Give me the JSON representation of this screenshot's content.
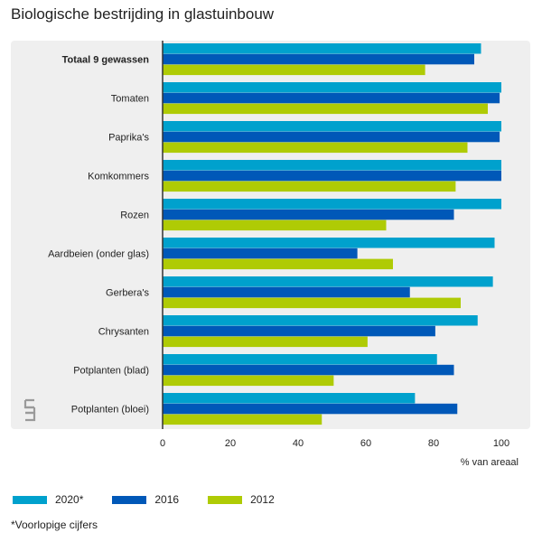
{
  "title": "Biologische bestrijding in glastuinbouw",
  "footnote": "*Voorlopige cijfers",
  "colors": {
    "2020*": "#00a1cd",
    "2016": "#0058b8",
    "2012": "#afcb05",
    "panel": "#efefef",
    "axis": "#333333"
  },
  "chart_data": {
    "type": "bar",
    "orientation": "horizontal",
    "title": "Biologische bestrijding in glastuinbouw",
    "xlabel": "% van areaal",
    "xlim": [
      0,
      100
    ],
    "xticks": [
      0,
      20,
      40,
      60,
      80,
      100
    ],
    "categories": [
      "Totaal 9 gewassen",
      "Tomaten",
      "Paprika's",
      "Komkommers",
      "Rozen",
      "Aardbeien (onder glas)",
      "Gerbera's",
      "Chrysanten",
      "Potplanten (blad)",
      "Potplanten (bloei)"
    ],
    "bold_categories": [
      "Totaal 9 gewassen"
    ],
    "series": [
      {
        "name": "2020*",
        "values": [
          94,
          100,
          100,
          100,
          100,
          98,
          97.5,
          93,
          81,
          74.5
        ]
      },
      {
        "name": "2016",
        "values": [
          92,
          99.5,
          99.5,
          100,
          86,
          57.5,
          73,
          80.5,
          86,
          87
        ]
      },
      {
        "name": "2012",
        "values": [
          77.5,
          96,
          90,
          86.5,
          66,
          68,
          88,
          60.5,
          50.5,
          47
        ]
      }
    ],
    "legend_position": "bottom-left",
    "grid": false
  }
}
